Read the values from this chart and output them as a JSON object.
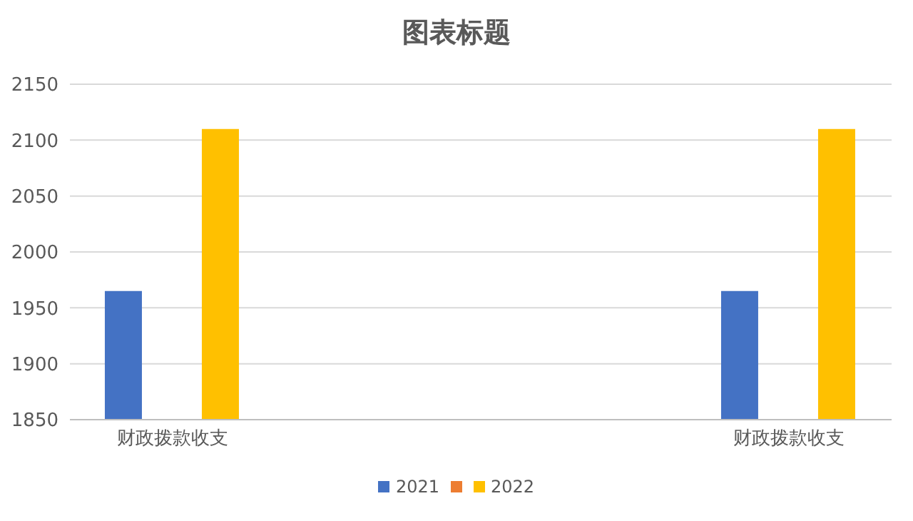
{
  "chart_data": {
    "type": "bar",
    "title": "图表标题",
    "categories": [
      "财政拨款收支",
      null,
      null,
      "财政拨款收支"
    ],
    "series": [
      {
        "name": "2021",
        "color": "#4472c4",
        "values": [
          1965,
          null,
          null,
          1965
        ]
      },
      {
        "color": "#ed7d31",
        "values": [
          null,
          null,
          null,
          null
        ]
      },
      {
        "name": "2022",
        "color": "#ffc000",
        "values": [
          2110,
          null,
          null,
          2110
        ]
      }
    ],
    "ylim": [
      1850,
      2150
    ],
    "yticks": [
      1850,
      1900,
      1950,
      2000,
      2050,
      2100,
      2150
    ],
    "grid": "y",
    "legend": "bottom"
  }
}
